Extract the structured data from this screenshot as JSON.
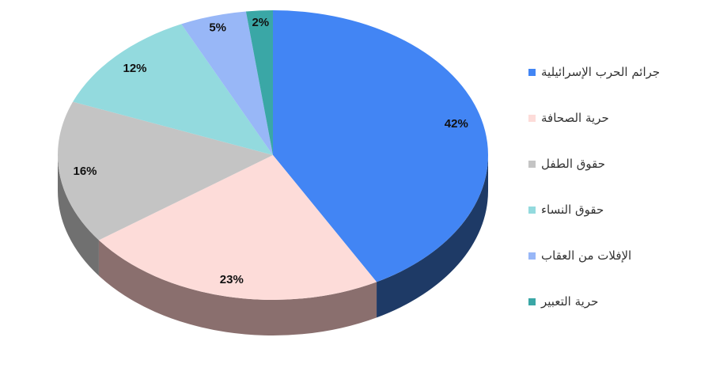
{
  "chart_data": {
    "type": "pie",
    "title": "",
    "legend_position": "right",
    "series": [
      {
        "name": "جرائم الحرب الإسرائيلية",
        "value": 42,
        "label": "42%",
        "color": "#4285f4",
        "side": "#1e3a66"
      },
      {
        "name": "حرية الصحافة",
        "value": 23,
        "label": "23%",
        "color": "#fddcd9",
        "side": "#8a6f6e"
      },
      {
        "name": "حقوق الطفل",
        "value": 16,
        "label": "16%",
        "color": "#c4c4c4",
        "side": "#707070"
      },
      {
        "name": "حقوق النساء",
        "value": 12,
        "label": "12%",
        "color": "#93dade",
        "side": "#4d8689"
      },
      {
        "name": "الإفلات من العقاب",
        "value": 5,
        "label": "5%",
        "color": "#98b7f7",
        "side": "#5270a5"
      },
      {
        "name": "حرية التعبير",
        "value": 2,
        "label": "2%",
        "color": "#3aa7a6",
        "side": "#1d5a59"
      }
    ]
  }
}
